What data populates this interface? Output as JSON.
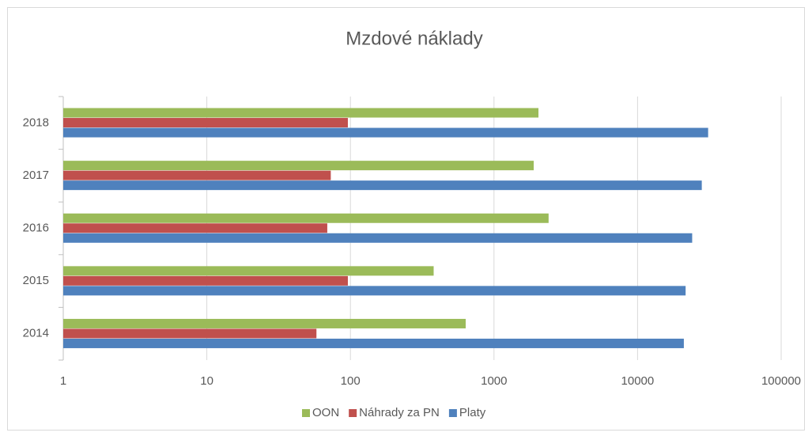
{
  "chart_data": {
    "type": "bar",
    "orientation": "horizontal",
    "title": "Mzdové náklady",
    "categories": [
      "2014",
      "2015",
      "2016",
      "2017",
      "2018"
    ],
    "series": [
      {
        "name": "OON",
        "color": "#9bbb59",
        "values": [
          635,
          380,
          2400,
          1890,
          2040
        ]
      },
      {
        "name": "Náhrady za PN",
        "color": "#c0504d",
        "values": [
          58,
          96,
          69,
          73,
          96
        ]
      },
      {
        "name": "Platy",
        "color": "#4f81bd",
        "values": [
          21000,
          21600,
          24000,
          28000,
          31000
        ]
      }
    ],
    "xlim": [
      1,
      100000
    ],
    "xticks": [
      1,
      10,
      100,
      1000,
      10000,
      100000
    ],
    "log_x": true,
    "grid": true,
    "legend": "bottom"
  }
}
